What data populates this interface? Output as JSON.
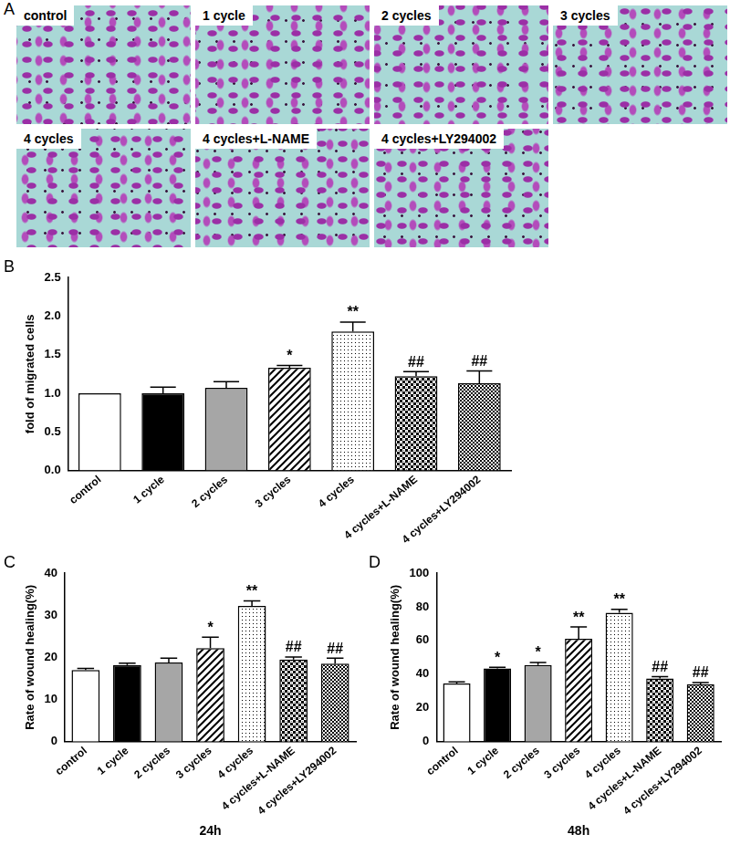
{
  "images": {
    "panel": "A",
    "labels": [
      "control",
      "1 cycle",
      "2 cycles",
      "3 cycles",
      "4 cycles",
      "4 cycles+L-NAME",
      "4 cycles+LY294002"
    ]
  },
  "chart_data": [
    {
      "type": "bar",
      "panel": "B",
      "ylabel": "fold of migrated cells",
      "categories": [
        "control",
        "1 cycle",
        "2 cycles",
        "3 cycles",
        "4 cycles",
        "4 cycles+L-NAME",
        "4 cycles+LY294002"
      ],
      "values": [
        1.0,
        1.0,
        1.07,
        1.33,
        1.8,
        1.22,
        1.13
      ],
      "errors": [
        0.0,
        0.08,
        0.08,
        0.03,
        0.12,
        0.06,
        0.16
      ],
      "annotations": [
        null,
        null,
        null,
        "*",
        "**",
        "##",
        "##"
      ],
      "colors": [
        "#ffffff",
        "#000000",
        "#a6a6a6",
        "#ffffff",
        "#ffffff",
        "#ffffff",
        "#ffffff"
      ],
      "ylim": [
        0,
        2.5
      ],
      "yticks": [
        {
          "value": 0,
          "label": "0.0"
        },
        {
          "value": 0.5,
          "label": "0.5"
        },
        {
          "value": 1,
          "label": "1.0"
        },
        {
          "value": 1.5,
          "label": "1.5"
        },
        {
          "value": 2,
          "label": "2.0"
        },
        {
          "value": 2.5,
          "label": "2.5"
        }
      ],
      "grid": false
    },
    {
      "type": "bar",
      "panel": "C",
      "ylabel": "Rate of wound healing(%)",
      "xlabel": "24h",
      "categories": [
        "control",
        "1 cycle",
        "2 cycles",
        "3 cycles",
        "4 cycles",
        "4 cycles+L-NAME",
        "4 cycles+LY294002"
      ],
      "values": [
        17.0,
        18.2,
        18.8,
        22.2,
        32.2,
        19.5,
        18.5
      ],
      "errors": [
        0.4,
        0.4,
        1.0,
        2.6,
        1.2,
        0.6,
        1.3
      ],
      "annotations": [
        null,
        null,
        null,
        "*",
        "**",
        "##",
        "##"
      ],
      "colors": [
        "#ffffff",
        "#000000",
        "#a6a6a6",
        "#ffffff",
        "#ffffff",
        "#ffffff",
        "#ffffff"
      ],
      "ylim": [
        0,
        40
      ],
      "yticks": [
        0,
        10,
        20,
        30,
        40
      ],
      "grid": false
    },
    {
      "type": "bar",
      "panel": "D",
      "ylabel": "Rate of wound healing(%)",
      "xlabel": "48h",
      "categories": [
        "control",
        "1 cycle",
        "2 cycles",
        "3 cycles",
        "4 cycles",
        "4 cycles+L-NAME",
        "4 cycles+LY294002"
      ],
      "values": [
        34.5,
        43.5,
        45.5,
        61.0,
        76.5,
        37.5,
        34.0
      ],
      "errors": [
        1.0,
        0.6,
        1.5,
        7.0,
        2.0,
        1.0,
        1.0
      ],
      "annotations": [
        null,
        "*",
        "*",
        "**",
        "**",
        "##",
        "##"
      ],
      "colors": [
        "#ffffff",
        "#000000",
        "#a6a6a6",
        "#ffffff",
        "#ffffff",
        "#ffffff",
        "#ffffff"
      ],
      "ylim": [
        0,
        100
      ],
      "yticks": [
        0,
        20,
        40,
        60,
        80,
        100
      ],
      "grid": false
    }
  ]
}
